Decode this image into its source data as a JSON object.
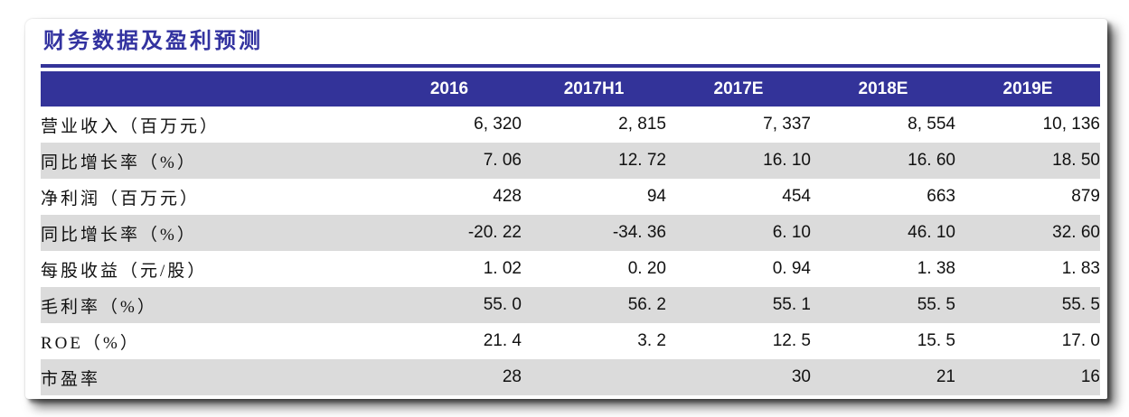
{
  "page": {
    "title": "财务数据及盈利预测"
  },
  "colors": {
    "accent_navy": "#333399",
    "title_navy": "#3333a0",
    "row_alt_gray": "#dbdbdb",
    "header_text": "#ffffff"
  },
  "table": {
    "columns": [
      "",
      "2016",
      "2017H1",
      "2017E",
      "2018E",
      "2019E"
    ],
    "rows": [
      {
        "label": "营业收入（百万元）",
        "values": [
          "6, 320",
          "2, 815",
          "7, 337",
          "8, 554",
          "10, 136"
        ]
      },
      {
        "label": "同比增长率（%）",
        "values": [
          "7. 06",
          "12. 72",
          "16. 10",
          "16. 60",
          "18. 50"
        ]
      },
      {
        "label": "净利润（百万元）",
        "values": [
          "428",
          "94",
          "454",
          "663",
          "879"
        ]
      },
      {
        "label": "同比增长率（%）",
        "values": [
          "-20. 22",
          "-34. 36",
          "6. 10",
          "46. 10",
          "32. 60"
        ]
      },
      {
        "label": "每股收益（元/股）",
        "values": [
          "1. 02",
          "0. 20",
          "0. 94",
          "1. 38",
          "1. 83"
        ]
      },
      {
        "label": "毛利率（%）",
        "values": [
          "55. 0",
          "56. 2",
          "55. 1",
          "55. 5",
          "55. 5"
        ]
      },
      {
        "label": "ROE（%）",
        "values": [
          "21. 4",
          "3. 2",
          "12. 5",
          "15. 5",
          "17. 0"
        ]
      },
      {
        "label": "市盈率",
        "values": [
          "28",
          "",
          "30",
          "21",
          "16"
        ]
      }
    ]
  },
  "chart_data": {
    "type": "table",
    "title": "财务数据及盈利预测",
    "categories": [
      "2016",
      "2017H1",
      "2017E",
      "2018E",
      "2019E"
    ],
    "series": [
      {
        "name": "营业收入（百万元）",
        "values": [
          6320,
          2815,
          7337,
          8554,
          10136
        ]
      },
      {
        "name": "同比增长率（%）",
        "values": [
          7.06,
          12.72,
          16.1,
          16.6,
          18.5
        ]
      },
      {
        "name": "净利润（百万元）",
        "values": [
          428,
          94,
          454,
          663,
          879
        ]
      },
      {
        "name": "同比增长率（%）",
        "values": [
          -20.22,
          -34.36,
          6.1,
          46.1,
          32.6
        ]
      },
      {
        "name": "每股收益（元/股）",
        "values": [
          1.02,
          0.2,
          0.94,
          1.38,
          1.83
        ]
      },
      {
        "name": "毛利率（%）",
        "values": [
          55.0,
          56.2,
          55.1,
          55.5,
          55.5
        ]
      },
      {
        "name": "ROE（%）",
        "values": [
          21.4,
          3.2,
          12.5,
          15.5,
          17.0
        ]
      },
      {
        "name": "市盈率",
        "values": [
          28,
          null,
          30,
          21,
          16
        ]
      }
    ]
  }
}
